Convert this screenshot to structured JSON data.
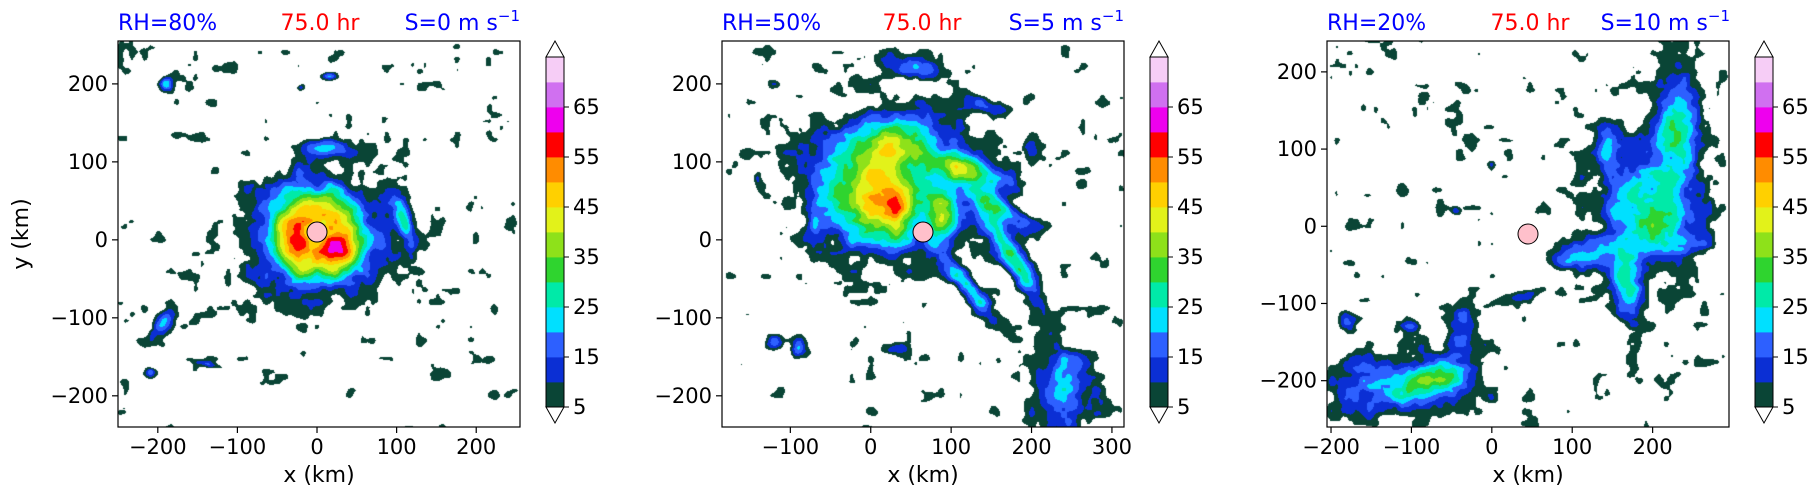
{
  "colors": {
    "title_left": "#0000ff",
    "title_center": "#ff0000",
    "title_right": "#0000ff",
    "storm_center": "#ffc0cb"
  },
  "colorbar": {
    "levels": [
      5,
      10,
      15,
      20,
      25,
      30,
      35,
      40,
      45,
      50,
      55,
      60,
      65,
      70
    ],
    "colors": [
      "#0a4536",
      "#0b2fd4",
      "#2d60ff",
      "#00e0ff",
      "#00eaa8",
      "#2fd42f",
      "#8ee11a",
      "#e2f21a",
      "#ffd000",
      "#ff8c00",
      "#ff0000",
      "#ee00ee",
      "#d070f0",
      "#f6cdf6"
    ],
    "tick_labels": [
      "5",
      "15",
      "25",
      "35",
      "45",
      "55",
      "65"
    ],
    "extend": "both"
  },
  "chart_data": [
    {
      "type": "heatmap",
      "title_left": "RH=80%",
      "title_center": "75.0 hr",
      "title_right": "S=0 m s",
      "title_right_sup": "−1",
      "xlabel": "x (km)",
      "ylabel": "y (km)",
      "xlim": [
        -250,
        255
      ],
      "ylim": [
        -240,
        255
      ],
      "xticks": [
        -200,
        -100,
        0,
        100,
        200
      ],
      "xtick_labels": [
        "−200",
        "−100",
        "0",
        "100",
        "200"
      ],
      "yticks": [
        -200,
        -100,
        0,
        100,
        200
      ],
      "ytick_labels": [
        "−200",
        "−100",
        "0",
        "100",
        "200"
      ],
      "storm_center": [
        0,
        10
      ],
      "features": [
        {
          "x": 0,
          "y": 5,
          "sx": 80,
          "sy": 75,
          "rot": 0,
          "peak": 30,
          "ring": 0
        },
        {
          "x": 0,
          "y": 8,
          "sx": 60,
          "sy": 58,
          "rot": 0,
          "peak": 22,
          "ring": 30
        },
        {
          "x": 25,
          "y": -15,
          "sx": 30,
          "sy": 20,
          "rot": -30,
          "peak": 18
        },
        {
          "x": -30,
          "y": -10,
          "sx": 20,
          "sy": 30,
          "rot": 0,
          "peak": 10
        },
        {
          "x": 110,
          "y": 20,
          "sx": 10,
          "sy": 35,
          "rot": 15,
          "peak": 22
        },
        {
          "x": 10,
          "y": 120,
          "sx": 30,
          "sy": 10,
          "rot": 0,
          "peak": 18
        },
        {
          "x": -190,
          "y": 200,
          "sx": 8,
          "sy": 8,
          "rot": 0,
          "peak": 25
        },
        {
          "x": 15,
          "y": 210,
          "sx": 10,
          "sy": 5,
          "rot": 0,
          "peak": 18
        },
        {
          "x": -20,
          "y": 195,
          "sx": 6,
          "sy": 5,
          "rot": 0,
          "peak": 15
        },
        {
          "x": -190,
          "y": -100,
          "sx": 10,
          "sy": 25,
          "rot": -35,
          "peak": 18
        },
        {
          "x": -210,
          "y": -170,
          "sx": 7,
          "sy": 6,
          "rot": 0,
          "peak": 16
        },
        {
          "x": -135,
          "y": -160,
          "sx": 18,
          "sy": 4,
          "rot": -15,
          "peak": 12
        }
      ]
    },
    {
      "type": "heatmap",
      "title_left": "RH=50%",
      "title_center": "75.0 hr",
      "title_right": "S=5 m s",
      "title_right_sup": "−1",
      "xlabel": "x (km)",
      "ylabel": "",
      "xlim": [
        -185,
        315
      ],
      "ylim": [
        -240,
        255
      ],
      "xticks": [
        -100,
        0,
        100,
        200,
        300
      ],
      "xtick_labels": [
        "−100",
        "0",
        "100",
        "200",
        "300"
      ],
      "yticks": [
        -200,
        -100,
        0,
        100,
        200
      ],
      "ytick_labels": [
        "−200",
        "−100",
        "0",
        "100",
        "200"
      ],
      "storm_center": [
        65,
        10
      ],
      "features": [
        {
          "x": 20,
          "y": 70,
          "sx": 90,
          "sy": 80,
          "rot": 0,
          "peak": 32
        },
        {
          "x": 0,
          "y": 60,
          "sx": 45,
          "sy": 55,
          "rot": 0,
          "peak": 20
        },
        {
          "x": 30,
          "y": 130,
          "sx": 40,
          "sy": 25,
          "rot": 20,
          "peak": 18
        },
        {
          "x": 30,
          "y": 30,
          "sx": 15,
          "sy": 35,
          "rot": 0,
          "peak": 18
        },
        {
          "x": 120,
          "y": 90,
          "sx": 60,
          "sy": 16,
          "rot": -20,
          "peak": 26
        },
        {
          "x": 160,
          "y": 40,
          "sx": 55,
          "sy": 14,
          "rot": -35,
          "peak": 26
        },
        {
          "x": 180,
          "y": -30,
          "sx": 70,
          "sy": 14,
          "rot": -60,
          "peak": 30
        },
        {
          "x": 120,
          "y": -60,
          "sx": 55,
          "sy": 12,
          "rot": -50,
          "peak": 26
        },
        {
          "x": 90,
          "y": 30,
          "sx": 20,
          "sy": 40,
          "rot": 0,
          "peak": 20
        },
        {
          "x": 240,
          "y": -190,
          "sx": 35,
          "sy": 55,
          "rot": 10,
          "peak": 24
        },
        {
          "x": 60,
          "y": 220,
          "sx": 45,
          "sy": 15,
          "rot": -10,
          "peak": 16
        },
        {
          "x": 150,
          "y": 170,
          "sx": 30,
          "sy": 10,
          "rot": -20,
          "peak": 15
        },
        {
          "x": 200,
          "y": 120,
          "sx": 10,
          "sy": 20,
          "rot": 0,
          "peak": 14
        },
        {
          "x": -120,
          "y": -130,
          "sx": 10,
          "sy": 10,
          "rot": 0,
          "peak": 16
        },
        {
          "x": -90,
          "y": -140,
          "sx": 8,
          "sy": 12,
          "rot": 0,
          "peak": 15
        },
        {
          "x": 30,
          "y": -140,
          "sx": 15,
          "sy": 8,
          "rot": 0,
          "peak": 15
        },
        {
          "x": -140,
          "y": 80,
          "sx": 6,
          "sy": 10,
          "rot": 0,
          "peak": 12
        },
        {
          "x": -70,
          "y": 20,
          "sx": 8,
          "sy": 15,
          "rot": 0,
          "peak": 13
        },
        {
          "x": 0,
          "y": -220,
          "sx": 10,
          "sy": 8,
          "rot": 0,
          "peak": 14
        },
        {
          "x": -120,
          "y": 200,
          "sx": 8,
          "sy": 8,
          "rot": 0,
          "peak": 12
        }
      ]
    },
    {
      "type": "heatmap",
      "title_left": "RH=20%",
      "title_center": "75.0 hr",
      "title_right": "S=10 m s",
      "title_right_sup": "−1",
      "xlabel": "x (km)",
      "ylabel": "",
      "xlim": [
        -205,
        295
      ],
      "ylim": [
        -260,
        240
      ],
      "xticks": [
        -200,
        -100,
        0,
        100,
        200
      ],
      "xtick_labels": [
        "−200",
        "−100",
        "0",
        "100",
        "200"
      ],
      "yticks": [
        -200,
        -100,
        0,
        100,
        200
      ],
      "ytick_labels": [
        "−200",
        "−100",
        "0",
        "100",
        "200"
      ],
      "storm_center": [
        45,
        -10
      ],
      "features": [
        {
          "x": 200,
          "y": 20,
          "sx": 65,
          "sy": 75,
          "rot": 0,
          "peak": 30
        },
        {
          "x": 230,
          "y": 140,
          "sx": 30,
          "sy": 60,
          "rot": 0,
          "peak": 26
        },
        {
          "x": 170,
          "y": -80,
          "sx": 18,
          "sy": 55,
          "rot": 10,
          "peak": 24
        },
        {
          "x": 110,
          "y": -40,
          "sx": 30,
          "sy": 20,
          "rot": 0,
          "peak": 20
        },
        {
          "x": -130,
          "y": -210,
          "sx": 90,
          "sy": 35,
          "rot": 0,
          "peak": 22
        },
        {
          "x": -60,
          "y": -190,
          "sx": 50,
          "sy": 30,
          "rot": 15,
          "peak": 20
        },
        {
          "x": -40,
          "y": -120,
          "sx": 18,
          "sy": 30,
          "rot": 0,
          "peak": 18
        },
        {
          "x": 40,
          "y": -90,
          "sx": 40,
          "sy": 8,
          "rot": 15,
          "peak": 14
        },
        {
          "x": 140,
          "y": 100,
          "sx": 15,
          "sy": 30,
          "rot": 0,
          "peak": 18
        },
        {
          "x": -180,
          "y": -120,
          "sx": 12,
          "sy": 10,
          "rot": 0,
          "peak": 14
        },
        {
          "x": -100,
          "y": -130,
          "sx": 12,
          "sy": 8,
          "rot": 0,
          "peak": 13
        },
        {
          "x": -45,
          "y": 20,
          "sx": 5,
          "sy": 5,
          "rot": 0,
          "peak": 12
        },
        {
          "x": 0,
          "y": 80,
          "sx": 5,
          "sy": 5,
          "rot": 0,
          "peak": 12
        }
      ]
    }
  ]
}
